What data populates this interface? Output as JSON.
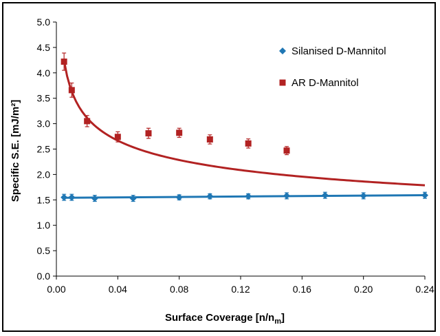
{
  "chart_data": {
    "type": "scatter",
    "xlabel": "Surface Coverage [n/n",
    "xlabel_subscript": "m",
    "xlabel_suffix": "]",
    "ylabel": "Specific S.E. [mJ/m²]",
    "xlim": [
      0,
      0.24
    ],
    "ylim": [
      0,
      5
    ],
    "x_ticks": [
      "0.00",
      "0.04",
      "0.08",
      "0.12",
      "0.16",
      "0.20",
      "0.24"
    ],
    "y_ticks": [
      "0.0",
      "0.5",
      "1.0",
      "1.5",
      "2.0",
      "2.5",
      "3.0",
      "3.5",
      "4.0",
      "4.5",
      "5.0"
    ],
    "grid": false,
    "legend_position": "top-right",
    "series": [
      {
        "name": "Silanised D-Mannitol",
        "color": "#1f77b4",
        "marker": "diamond",
        "x": [
          0.005,
          0.01,
          0.025,
          0.05,
          0.08,
          0.1,
          0.125,
          0.15,
          0.175,
          0.2,
          0.24
        ],
        "y": [
          1.55,
          1.55,
          1.53,
          1.53,
          1.55,
          1.57,
          1.57,
          1.58,
          1.59,
          1.58,
          1.59
        ],
        "error": [
          0.06,
          0.06,
          0.06,
          0.06,
          0.05,
          0.05,
          0.05,
          0.06,
          0.06,
          0.06,
          0.06
        ],
        "fit": {
          "type": "linear",
          "intercept": 1.54,
          "slope": 0.22
        }
      },
      {
        "name": "AR D-Mannitol",
        "color": "#b22222",
        "marker": "square",
        "x": [
          0.005,
          0.01,
          0.02,
          0.04,
          0.06,
          0.08,
          0.1,
          0.125,
          0.15
        ],
        "y": [
          4.22,
          3.66,
          3.05,
          2.74,
          2.81,
          2.82,
          2.69,
          2.61,
          2.47
        ],
        "error": [
          0.17,
          0.14,
          0.11,
          0.1,
          0.1,
          0.09,
          0.09,
          0.09,
          0.08
        ],
        "fit": {
          "type": "power",
          "a": 1.3,
          "b": -0.2232
        }
      }
    ]
  }
}
